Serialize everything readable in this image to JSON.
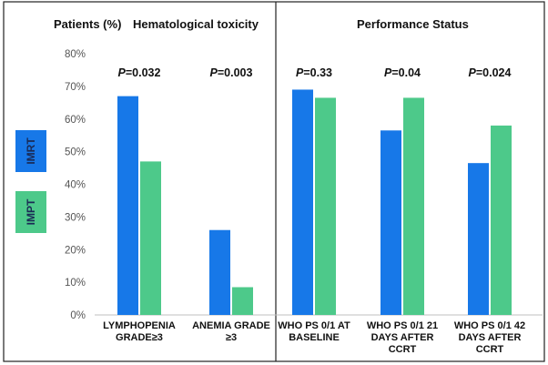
{
  "chart_data": {
    "type": "bar",
    "ylabel": "Patients (%)",
    "ylim": [
      0,
      80
    ],
    "yticks": [
      0,
      10,
      20,
      30,
      40,
      50,
      60,
      70,
      80
    ],
    "tick_suffix": "%",
    "grid": false,
    "legend_position": "left",
    "colors": {
      "IMRT": "#1778e8",
      "IMPT": "#4dc98a",
      "frame": "#222222"
    },
    "series": [
      {
        "name": "IMRT",
        "values": [
          67,
          26,
          69,
          56.5,
          46.5
        ]
      },
      {
        "name": "IMPT",
        "values": [
          47,
          8.5,
          66.5,
          66.5,
          58
        ]
      }
    ],
    "panels": [
      {
        "title": "Hematological toxicity",
        "groups": [
          {
            "label_lines": [
              "LYMPHOPENIA",
              "GRADE≥3"
            ],
            "p_value": "=0.032",
            "values": [
              67,
              47
            ]
          },
          {
            "label_lines": [
              "ANEMIA GRADE",
              "≥3"
            ],
            "p_value": "=0.003",
            "values": [
              26,
              8.5
            ]
          }
        ]
      },
      {
        "title": "Performance Status",
        "groups": [
          {
            "label_lines": [
              "WHO PS 0/1 AT",
              "BASELINE"
            ],
            "p_value": "=0.33",
            "values": [
              69,
              66.5
            ]
          },
          {
            "label_lines": [
              "WHO PS 0/1 21",
              "DAYS AFTER",
              "CCRT"
            ],
            "p_value": "=0.04",
            "values": [
              56.5,
              66.5
            ]
          },
          {
            "label_lines": [
              "WHO PS 0/1 42",
              "DAYS AFTER",
              "CCRT"
            ],
            "p_value": "=0.024",
            "values": [
              46.5,
              58
            ]
          }
        ]
      }
    ],
    "p_letter": "P"
  }
}
